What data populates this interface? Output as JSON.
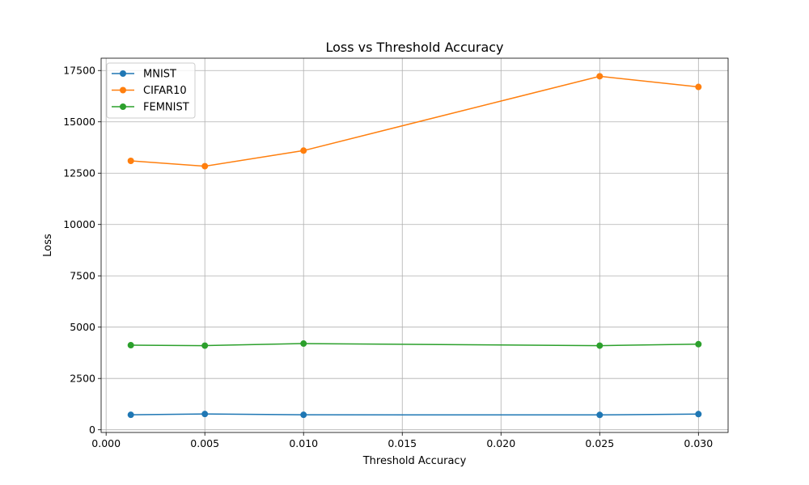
{
  "chart_data": {
    "type": "line",
    "title": "Loss vs Threshold Accuracy",
    "xlabel": "Threshold Accuracy",
    "ylabel": "Loss",
    "x": [
      0.00125,
      0.005,
      0.01,
      0.025,
      0.03
    ],
    "xlim": [
      -0.000253,
      0.031503
    ],
    "ylim": [
      -130,
      18100
    ],
    "xticks": [
      0.0,
      0.005,
      0.01,
      0.015,
      0.02,
      0.025,
      0.03
    ],
    "xtick_labels": [
      "0.000",
      "0.005",
      "0.010",
      "0.015",
      "0.020",
      "0.025",
      "0.030"
    ],
    "yticks": [
      0,
      2500,
      5000,
      7500,
      10000,
      12500,
      15000,
      17500
    ],
    "ytick_labels": [
      "0",
      "2500",
      "5000",
      "7500",
      "10000",
      "12500",
      "15000",
      "17500"
    ],
    "grid": true,
    "legend_position": "upper-left",
    "marker": "circle",
    "series": [
      {
        "name": "MNIST",
        "color": "#1f77b4",
        "values": [
          730,
          770,
          730,
          725,
          765
        ]
      },
      {
        "name": "CIFAR10",
        "color": "#ff7f0e",
        "values": [
          13100,
          12840,
          13600,
          17220,
          16700
        ]
      },
      {
        "name": "FEMNIST",
        "color": "#2ca02c",
        "values": [
          4120,
          4100,
          4200,
          4100,
          4170
        ]
      }
    ]
  }
}
